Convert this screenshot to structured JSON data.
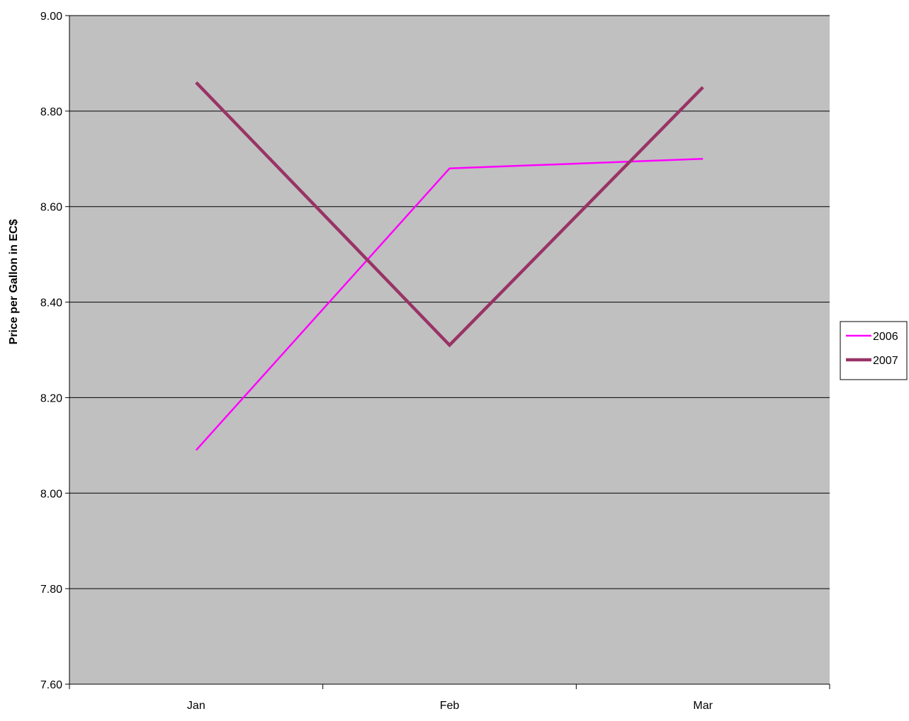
{
  "chart_data": {
    "type": "line",
    "categories": [
      "Jan",
      "Feb",
      "Mar"
    ],
    "series": [
      {
        "name": "2006",
        "values": [
          8.09,
          8.68,
          8.7
        ],
        "color": "#ff00ff"
      },
      {
        "name": "2007",
        "values": [
          8.86,
          8.31,
          8.85
        ],
        "color": "#993366"
      }
    ],
    "ylabel": "Price per Gallon in EC$",
    "ylim": [
      7.6,
      9.0
    ],
    "yticks": [
      "7.60",
      "7.80",
      "8.00",
      "8.20",
      "8.40",
      "8.60",
      "8.80",
      "9.00"
    ],
    "grid": true,
    "legend_position": "right",
    "plot_background": "#c0c0c0"
  }
}
